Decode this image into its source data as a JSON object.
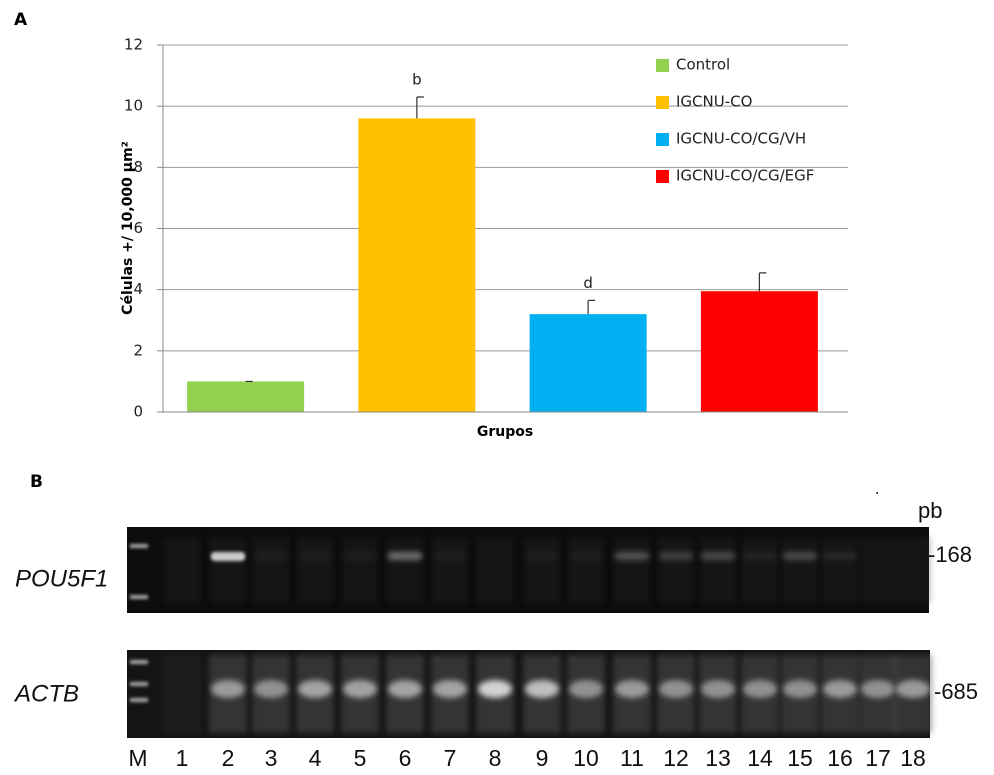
{
  "chart_data": {
    "type": "bar",
    "panel": "A",
    "x_label": "Grupos",
    "y_label": "Células +/ 10,000 µm²",
    "categories": [
      null
    ],
    "series": [
      {
        "name": "Control",
        "color": "#92d050",
        "values": [
          1.0
        ],
        "errors": [
          0.0
        ]
      },
      {
        "name": "IGCNU-CO",
        "color": "#ffc000",
        "values": [
          9.6
        ],
        "errors": [
          0.7
        ],
        "annotation": "b"
      },
      {
        "name": "IGCNU-CO/CG/VH",
        "color": "#00b0f0",
        "values": [
          3.2
        ],
        "errors": [
          0.45
        ],
        "annotation": "d"
      },
      {
        "name": "IGCNU-CO/CG/EGF",
        "color": "#ff0000",
        "values": [
          3.95
        ],
        "errors": [
          0.6
        ]
      }
    ],
    "ylim": [
      0,
      12
    ],
    "yticks": [
      0,
      2,
      4,
      6,
      8,
      10,
      12
    ],
    "grid": true,
    "legend": "upper right"
  },
  "gel": {
    "panel": "B",
    "unit": "pb",
    "rows": [
      {
        "label": "POU5F1",
        "size": "-168"
      },
      {
        "label": "ACTB",
        "size": "-685"
      }
    ],
    "lanes": [
      "M",
      "1",
      "2",
      "3",
      "4",
      "5",
      "6",
      "7",
      "8",
      "9",
      "10",
      "11",
      "12",
      "13",
      "14",
      "15",
      "16",
      "17",
      "18"
    ]
  }
}
